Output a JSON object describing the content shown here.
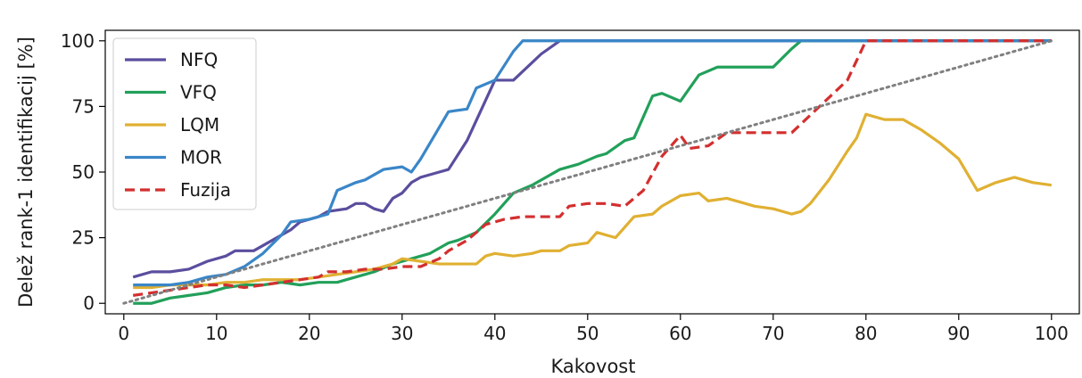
{
  "chart_data": {
    "type": "line",
    "title": "",
    "xlabel": "Kakovost",
    "ylabel": "Delež rank-1 identifikacij [%]",
    "xlim": [
      -2,
      103
    ],
    "ylim": [
      -4,
      104
    ],
    "xticks": [
      0,
      10,
      20,
      30,
      40,
      50,
      60,
      70,
      80,
      90,
      100
    ],
    "yticks": [
      0,
      25,
      50,
      75,
      100
    ],
    "grid": false,
    "legend_position": "top-left",
    "series": [
      {
        "name": "NFQ",
        "color": "#5a4e9e",
        "dash": "solid",
        "points": [
          [
            1,
            10
          ],
          [
            3,
            12
          ],
          [
            5,
            12
          ],
          [
            7,
            13
          ],
          [
            9,
            16
          ],
          [
            11,
            18
          ],
          [
            12,
            20
          ],
          [
            14,
            20
          ],
          [
            16,
            24
          ],
          [
            18,
            28
          ],
          [
            19,
            31
          ],
          [
            21,
            33
          ],
          [
            22,
            35
          ],
          [
            24,
            36
          ],
          [
            25,
            38
          ],
          [
            26,
            38
          ],
          [
            27,
            36
          ],
          [
            28,
            35
          ],
          [
            29,
            40
          ],
          [
            30,
            42
          ],
          [
            31,
            46
          ],
          [
            32,
            48
          ],
          [
            34,
            50
          ],
          [
            35,
            51
          ],
          [
            37,
            62
          ],
          [
            40,
            85
          ],
          [
            42,
            85
          ],
          [
            45,
            95
          ],
          [
            47,
            100
          ],
          [
            100,
            100
          ]
        ]
      },
      {
        "name": "VFQ",
        "color": "#22a05a",
        "dash": "solid",
        "points": [
          [
            1,
            0
          ],
          [
            3,
            0
          ],
          [
            5,
            2
          ],
          [
            7,
            3
          ],
          [
            9,
            4
          ],
          [
            11,
            6
          ],
          [
            13,
            7
          ],
          [
            15,
            7
          ],
          [
            17,
            8
          ],
          [
            19,
            7
          ],
          [
            21,
            8
          ],
          [
            23,
            8
          ],
          [
            24,
            9
          ],
          [
            26,
            11
          ],
          [
            27,
            12
          ],
          [
            29,
            15
          ],
          [
            31,
            17
          ],
          [
            33,
            19
          ],
          [
            35,
            23
          ],
          [
            36,
            24
          ],
          [
            38,
            27
          ],
          [
            40,
            34
          ],
          [
            42,
            42
          ],
          [
            44,
            45
          ],
          [
            45,
            47
          ],
          [
            47,
            51
          ],
          [
            49,
            53
          ],
          [
            51,
            56
          ],
          [
            52,
            57
          ],
          [
            54,
            62
          ],
          [
            55,
            63
          ],
          [
            57,
            79
          ],
          [
            58,
            80
          ],
          [
            60,
            77
          ],
          [
            62,
            87
          ],
          [
            64,
            90
          ],
          [
            70,
            90
          ],
          [
            72,
            97
          ],
          [
            73,
            100
          ],
          [
            100,
            100
          ]
        ]
      },
      {
        "name": "LQM",
        "color": "#e0b032",
        "dash": "solid",
        "points": [
          [
            1,
            6
          ],
          [
            3,
            6
          ],
          [
            5,
            7
          ],
          [
            7,
            7
          ],
          [
            9,
            7
          ],
          [
            11,
            8
          ],
          [
            13,
            8
          ],
          [
            15,
            9
          ],
          [
            17,
            9
          ],
          [
            19,
            9
          ],
          [
            21,
            10
          ],
          [
            23,
            11
          ],
          [
            25,
            12
          ],
          [
            27,
            13
          ],
          [
            29,
            15
          ],
          [
            30,
            17
          ],
          [
            32,
            16
          ],
          [
            34,
            15
          ],
          [
            36,
            15
          ],
          [
            38,
            15
          ],
          [
            39,
            18
          ],
          [
            40,
            19
          ],
          [
            42,
            18
          ],
          [
            44,
            19
          ],
          [
            45,
            20
          ],
          [
            47,
            20
          ],
          [
            48,
            22
          ],
          [
            50,
            23
          ],
          [
            51,
            27
          ],
          [
            53,
            25
          ],
          [
            54,
            29
          ],
          [
            55,
            33
          ],
          [
            57,
            34
          ],
          [
            58,
            37
          ],
          [
            60,
            41
          ],
          [
            62,
            42
          ],
          [
            63,
            39
          ],
          [
            65,
            40
          ],
          [
            67,
            38
          ],
          [
            68,
            37
          ],
          [
            70,
            36
          ],
          [
            72,
            34
          ],
          [
            73,
            35
          ],
          [
            74,
            38
          ],
          [
            76,
            47
          ],
          [
            78,
            58
          ],
          [
            79,
            63
          ],
          [
            80,
            72
          ],
          [
            82,
            70
          ],
          [
            84,
            70
          ],
          [
            86,
            66
          ],
          [
            88,
            61
          ],
          [
            90,
            55
          ],
          [
            92,
            43
          ],
          [
            94,
            46
          ],
          [
            96,
            48
          ],
          [
            98,
            46
          ],
          [
            100,
            45
          ]
        ]
      },
      {
        "name": "MOR",
        "color": "#3a86c8",
        "dash": "solid",
        "points": [
          [
            1,
            7
          ],
          [
            3,
            7
          ],
          [
            5,
            7
          ],
          [
            7,
            8
          ],
          [
            9,
            10
          ],
          [
            11,
            11
          ],
          [
            13,
            14
          ],
          [
            15,
            19
          ],
          [
            17,
            26
          ],
          [
            18,
            31
          ],
          [
            20,
            32
          ],
          [
            22,
            34
          ],
          [
            23,
            43
          ],
          [
            25,
            46
          ],
          [
            26,
            47
          ],
          [
            28,
            51
          ],
          [
            30,
            52
          ],
          [
            31,
            50
          ],
          [
            32,
            55
          ],
          [
            34,
            67
          ],
          [
            35,
            73
          ],
          [
            37,
            74
          ],
          [
            38,
            82
          ],
          [
            40,
            85
          ],
          [
            42,
            96
          ],
          [
            43,
            100
          ],
          [
            100,
            100
          ]
        ]
      },
      {
        "name": "Fuzija",
        "color": "#d32f2f",
        "dash": "dashed",
        "points": [
          [
            1,
            3
          ],
          [
            3,
            4
          ],
          [
            5,
            5
          ],
          [
            7,
            6
          ],
          [
            9,
            7
          ],
          [
            11,
            7
          ],
          [
            13,
            6
          ],
          [
            15,
            7
          ],
          [
            17,
            8
          ],
          [
            19,
            9
          ],
          [
            21,
            10
          ],
          [
            22,
            12
          ],
          [
            24,
            12
          ],
          [
            26,
            13
          ],
          [
            28,
            13
          ],
          [
            30,
            14
          ],
          [
            32,
            14
          ],
          [
            34,
            17
          ],
          [
            35,
            20
          ],
          [
            37,
            24
          ],
          [
            39,
            30
          ],
          [
            41,
            32
          ],
          [
            43,
            33
          ],
          [
            45,
            33
          ],
          [
            47,
            33
          ],
          [
            48,
            37
          ],
          [
            50,
            38
          ],
          [
            52,
            38
          ],
          [
            54,
            37
          ],
          [
            56,
            43
          ],
          [
            58,
            56
          ],
          [
            60,
            64
          ],
          [
            61,
            59
          ],
          [
            63,
            60
          ],
          [
            65,
            65
          ],
          [
            72,
            65
          ],
          [
            75,
            75
          ],
          [
            78,
            85
          ],
          [
            80,
            100
          ],
          [
            100,
            100
          ]
        ]
      },
      {
        "name": "",
        "color": "#808080",
        "dash": "dotted",
        "points": [
          [
            0,
            0
          ],
          [
            100,
            100
          ]
        ]
      }
    ]
  }
}
